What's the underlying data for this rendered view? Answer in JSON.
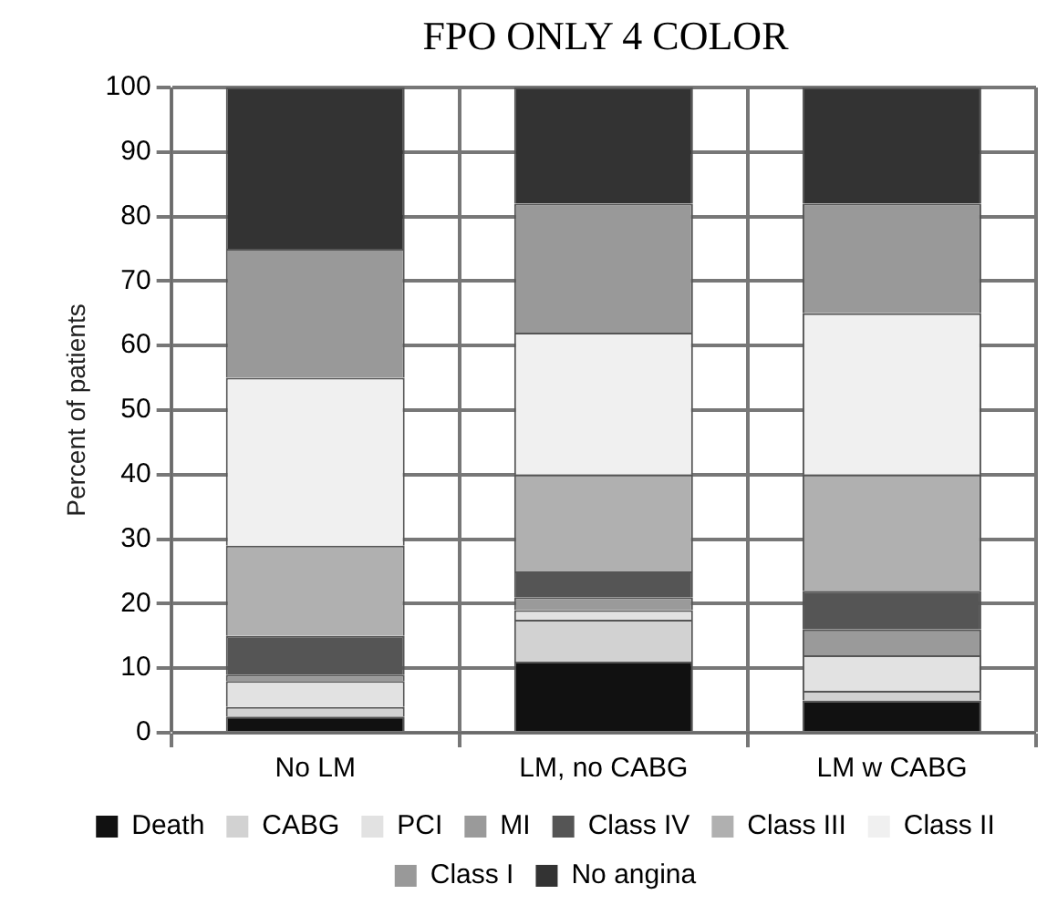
{
  "chart_data": {
    "type": "bar",
    "title": "FPO ONLY 4 COLOR",
    "ylabel": "Percent of patients",
    "categories": [
      "No LM",
      "LM, no CABG",
      "LM w CABG"
    ],
    "stacked": true,
    "ylim": [
      0,
      100
    ],
    "yticks": [
      0,
      10,
      20,
      30,
      40,
      50,
      60,
      70,
      80,
      90,
      100
    ],
    "grid": true,
    "legend": "bottom",
    "series": [
      {
        "name": "Death",
        "color": "#111111",
        "values": [
          2.5,
          11,
          5
        ]
      },
      {
        "name": "CABG",
        "color": "#d2d2d2",
        "values": [
          1.5,
          6.5,
          1.5
        ]
      },
      {
        "name": "PCI",
        "color": "#e2e2e2",
        "values": [
          4,
          1.5,
          5.5
        ]
      },
      {
        "name": "MI",
        "color": "#9a9a9a",
        "values": [
          1,
          2,
          4
        ]
      },
      {
        "name": "Class IV",
        "color": "#555555",
        "values": [
          6,
          4,
          6
        ]
      },
      {
        "name": "Class III",
        "color": "#b0b0b0",
        "values": [
          14,
          15,
          18
        ]
      },
      {
        "name": "Class II",
        "color": "#f0f0f0",
        "values": [
          26,
          22,
          25
        ]
      },
      {
        "name": "Class I",
        "color": "#999999",
        "values": [
          20,
          20,
          17
        ]
      },
      {
        "name": "No angina",
        "color": "#333333",
        "values": [
          25,
          18,
          18
        ]
      }
    ]
  }
}
